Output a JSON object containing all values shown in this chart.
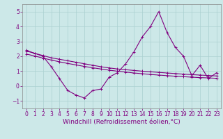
{
  "title": "",
  "xlabel": "Windchill (Refroidissement éolien,°C)",
  "ylabel": "",
  "bg_color": "#cce8e8",
  "line_color": "#800080",
  "xlim": [
    -0.5,
    23.5
  ],
  "ylim": [
    -1.5,
    5.5
  ],
  "yticks": [
    -1,
    0,
    1,
    2,
    3,
    4,
    5
  ],
  "xticks": [
    0,
    1,
    2,
    3,
    4,
    5,
    6,
    7,
    8,
    9,
    10,
    11,
    12,
    13,
    14,
    15,
    16,
    17,
    18,
    19,
    20,
    21,
    22,
    23
  ],
  "x": [
    0,
    1,
    2,
    3,
    4,
    5,
    6,
    7,
    8,
    9,
    10,
    11,
    12,
    13,
    14,
    15,
    16,
    17,
    18,
    19,
    20,
    21,
    22,
    23
  ],
  "y_data": [
    2.4,
    2.2,
    2.0,
    1.3,
    0.5,
    -0.3,
    -0.6,
    -0.8,
    -0.3,
    -0.2,
    0.6,
    0.9,
    1.5,
    2.3,
    3.3,
    4.0,
    5.0,
    3.6,
    2.6,
    2.0,
    0.7,
    1.4,
    0.5,
    0.9
  ],
  "y_trend1": [
    2.35,
    2.2,
    2.05,
    1.9,
    1.8,
    1.7,
    1.6,
    1.5,
    1.4,
    1.3,
    1.22,
    1.15,
    1.1,
    1.05,
    1.0,
    0.96,
    0.92,
    0.88,
    0.84,
    0.8,
    0.77,
    0.74,
    0.71,
    0.68
  ],
  "y_trend2": [
    2.15,
    2.02,
    1.88,
    1.75,
    1.63,
    1.52,
    1.42,
    1.32,
    1.23,
    1.15,
    1.07,
    1.0,
    0.94,
    0.88,
    0.83,
    0.78,
    0.74,
    0.7,
    0.66,
    0.63,
    0.6,
    0.57,
    0.55,
    0.52
  ],
  "grid_color": "#aad0d0",
  "tick_fontsize": 5.5,
  "label_fontsize": 6.5
}
